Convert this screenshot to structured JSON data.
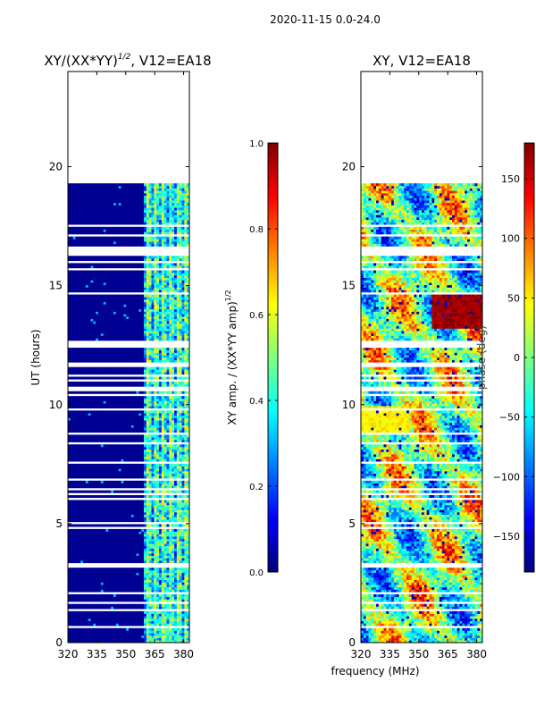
{
  "suptitle": "2020-11-15 0.0-24.0",
  "xlabel_common": "frequency (MHz)",
  "colors": {
    "jet": [
      "#00007f",
      "#0000ff",
      "#007fff",
      "#00ffff",
      "#7fff7f",
      "#ffff00",
      "#ff7f00",
      "#ff0000",
      "#7f0000"
    ],
    "nodata": "#ffffff"
  },
  "chart_data": [
    {
      "type": "heatmap",
      "title_base": "XY/(XX*YY)",
      "title_sup": "1/2",
      "title_suffix": ", V12=EA18",
      "xlabel": "",
      "ylabel": "UT (hours)",
      "xlim": [
        320,
        383
      ],
      "ylim": [
        0,
        24
      ],
      "xticks": [
        320,
        335,
        350,
        365,
        380
      ],
      "yticks": [
        0,
        5,
        10,
        15,
        20
      ],
      "data_end_hour": 19.3,
      "colorbar": {
        "label_base": "XY amp. / (XX*YY amp)",
        "label_sup": "1/2",
        "range": [
          0.0,
          1.0
        ],
        "ticks": [
          "0.0",
          "0.2",
          "0.4",
          "0.6",
          "0.8",
          "1.0"
        ],
        "tick_values": [
          0.0,
          0.2,
          0.4,
          0.6,
          0.8,
          1.0
        ]
      },
      "features": [
        {
          "band_start_mhz": 320,
          "band_end_mhz": 360,
          "typical_value": 0.0
        },
        {
          "band_start_mhz": 360,
          "band_end_mhz": 383,
          "typical_value": 0.45
        }
      ]
    },
    {
      "type": "heatmap",
      "title": "XY, V12=EA18",
      "xlabel": "frequency (MHz)",
      "ylabel": "",
      "xlim": [
        320,
        383
      ],
      "ylim": [
        0,
        24
      ],
      "xticks": [
        320,
        335,
        350,
        365,
        380
      ],
      "yticks": [
        0,
        5,
        10,
        15,
        20
      ],
      "data_end_hour": 19.3,
      "colorbar": {
        "label": "phase (deg)",
        "range": [
          -180,
          180
        ],
        "ticks": [
          "150",
          "100",
          "50",
          "0",
          "−50",
          "−100",
          "−150"
        ],
        "tick_values": [
          150,
          100,
          50,
          0,
          -50,
          -100,
          -150
        ]
      },
      "features": [
        {
          "hours": [
            13.2,
            14.6
          ],
          "band_start_mhz": 357,
          "band_end_mhz": 383,
          "phase_deg": 170
        },
        {
          "hours": [
            8.8,
            10.0
          ],
          "band_start_mhz": 320,
          "band_end_mhz": 345,
          "phase_deg": 50
        }
      ]
    }
  ]
}
